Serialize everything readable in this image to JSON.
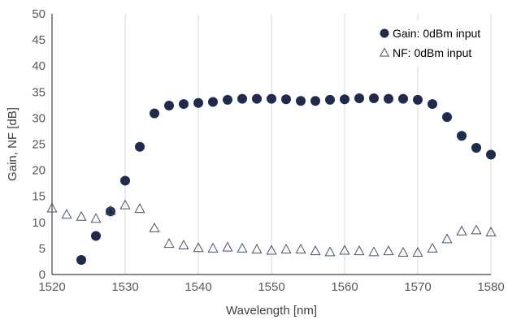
{
  "chart_data": {
    "type": "scatter",
    "title": "",
    "xlabel": "Wavelength [nm]",
    "ylabel": "Gain, NF [dB]",
    "xlim": [
      1520,
      1580
    ],
    "ylim": [
      0,
      50
    ],
    "x_ticks": [
      "1520",
      "1530",
      "1540",
      "1550",
      "1560",
      "1570",
      "1580"
    ],
    "y_ticks": [
      "0",
      "5",
      "10",
      "15",
      "20",
      "25",
      "30",
      "35",
      "40",
      "45",
      "50"
    ],
    "grid": "vertical",
    "legend_position": "top-right",
    "series": [
      {
        "name": "Gain: 0dBm input",
        "marker": "filled-circle",
        "color": "#1f2a4d",
        "x": [
          1524,
          1526,
          1528,
          1530,
          1532,
          1534,
          1536,
          1538,
          1540,
          1542,
          1544,
          1546,
          1548,
          1550,
          1552,
          1554,
          1556,
          1558,
          1560,
          1562,
          1564,
          1566,
          1568,
          1570,
          1572,
          1574,
          1576,
          1578,
          1580
        ],
        "y": [
          2.8,
          7.4,
          12.1,
          18.0,
          24.5,
          30.9,
          32.4,
          32.7,
          32.9,
          33.1,
          33.5,
          33.7,
          33.7,
          33.7,
          33.6,
          33.3,
          33.3,
          33.5,
          33.6,
          33.8,
          33.8,
          33.7,
          33.7,
          33.5,
          32.7,
          30.2,
          26.6,
          24.3,
          23.0
        ]
      },
      {
        "name": "NF: 0dBm input",
        "marker": "open-triangle",
        "color": "#44546a",
        "x": [
          1520,
          1522,
          1524,
          1526,
          1528,
          1530,
          1532,
          1534,
          1536,
          1538,
          1540,
          1542,
          1544,
          1546,
          1548,
          1550,
          1552,
          1554,
          1556,
          1558,
          1560,
          1562,
          1564,
          1566,
          1568,
          1570,
          1572,
          1574,
          1576,
          1578,
          1580
        ],
        "y": [
          12.7,
          11.5,
          11.1,
          10.7,
          12.2,
          13.3,
          12.6,
          8.9,
          5.9,
          5.6,
          5.1,
          5.0,
          5.2,
          5.0,
          4.8,
          4.6,
          4.8,
          4.8,
          4.5,
          4.3,
          4.6,
          4.5,
          4.3,
          4.5,
          4.2,
          4.2,
          5.0,
          6.8,
          8.3,
          8.5,
          8.1
        ]
      }
    ]
  }
}
